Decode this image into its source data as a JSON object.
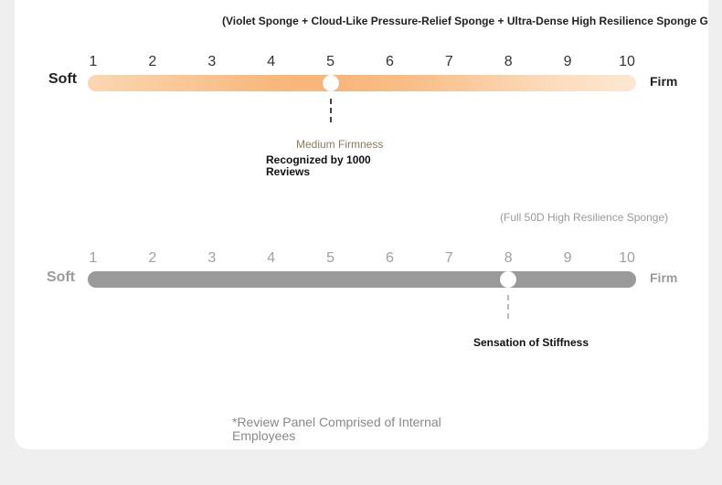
{
  "scale1": {
    "caption": "(Violet Sponge + Cloud-Like Pressure-Relief Sponge + Ultra-Dense High Resilience Sponge Golden Ratio)",
    "soft_label": "Soft",
    "firm_label": "Firm",
    "ticks": [
      "1",
      "2",
      "3",
      "4",
      "5",
      "6",
      "7",
      "8",
      "9",
      "10"
    ],
    "value": 5,
    "rating_label": "Medium Firmness",
    "recognition": "Recognized by 1000 Reviews"
  },
  "scale2": {
    "caption": "(Full 50D High Resilience Sponge)",
    "soft_label": "Soft",
    "firm_label": "Firm",
    "ticks": [
      "1",
      "2",
      "3",
      "4",
      "5",
      "6",
      "7",
      "8",
      "9",
      "10"
    ],
    "value": 8,
    "rating_label": "Sensation of Stiffness"
  },
  "footnote": "*Review Panel Comprised of Internal Employees",
  "colors": {
    "scale1_bar_start": "#fbd7b2",
    "scale1_bar_peak": "#f8b57a",
    "scale2_bar": "#9a9a9a",
    "background": "#efefef",
    "card": "#ffffff"
  }
}
